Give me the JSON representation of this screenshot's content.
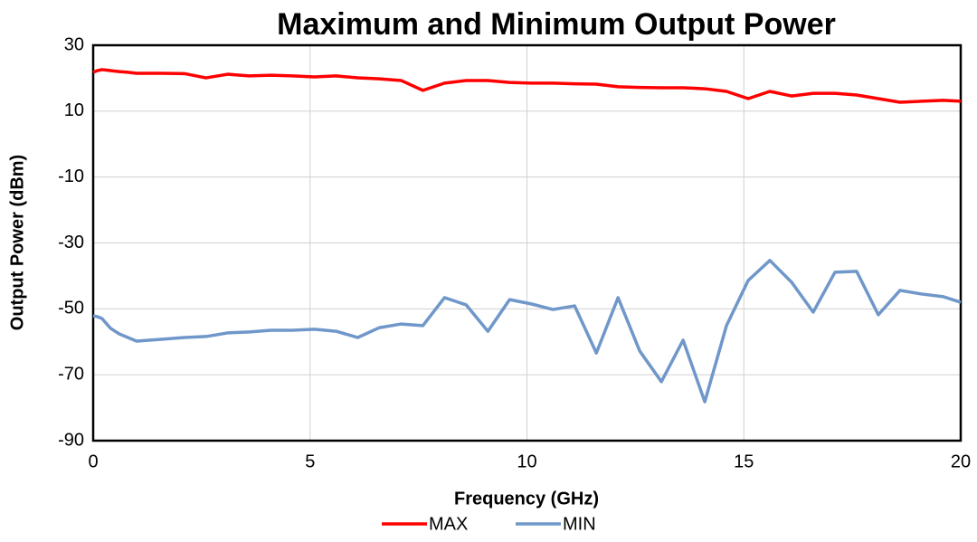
{
  "chart_data": {
    "type": "line",
    "title": "Maximum and Minimum Output Power",
    "x_label": "Frequency (GHz)",
    "y_label": "Output Power (dBm)",
    "x": [
      0,
      0.1,
      0.2,
      0.4,
      0.6,
      0.8,
      1.0,
      1.6,
      2.1,
      2.6,
      3.1,
      3.6,
      4.1,
      4.6,
      5.1,
      5.6,
      6.1,
      6.6,
      7.1,
      7.6,
      8.1,
      8.6,
      9.1,
      9.6,
      10.1,
      10.6,
      11.1,
      11.6,
      12.1,
      12.6,
      13.1,
      13.6,
      14.1,
      14.6,
      15.1,
      15.6,
      16.1,
      16.6,
      17.1,
      17.6,
      18.1,
      18.6,
      19.1,
      19.6,
      20.0
    ],
    "series": [
      {
        "name": "MAX",
        "color": "#ff0000",
        "values": [
          21.8,
          22.3,
          22.6,
          22.3,
          22.0,
          21.8,
          21.5,
          21.5,
          21.4,
          20.1,
          21.2,
          20.7,
          20.9,
          20.7,
          20.4,
          20.7,
          20.1,
          19.8,
          19.3,
          16.3,
          18.5,
          19.3,
          19.3,
          18.7,
          18.5,
          18.5,
          18.3,
          18.2,
          17.4,
          17.2,
          17.1,
          17.1,
          16.8,
          16.0,
          13.8,
          16.0,
          14.6,
          15.4,
          15.4,
          14.9,
          13.8,
          12.7,
          13.0,
          13.3,
          13.0
        ]
      },
      {
        "name": "MIN",
        "color": "#6f97c9",
        "values": [
          -52.1,
          -52.4,
          -52.9,
          -55.9,
          -57.6,
          -58.7,
          -59.8,
          -59.2,
          -58.7,
          -58.4,
          -57.3,
          -57.0,
          -56.5,
          -56.5,
          -56.2,
          -56.8,
          -58.7,
          -55.7,
          -54.6,
          -55.1,
          -46.6,
          -48.8,
          -56.8,
          -47.2,
          -48.5,
          -50.2,
          -49.1,
          -63.4,
          -46.6,
          -62.8,
          -72.1,
          -59.5,
          -78.2,
          -55.1,
          -41.4,
          -35.3,
          -41.9,
          -51.0,
          -38.9,
          -38.6,
          -51.8,
          -44.4,
          -45.5,
          -46.3,
          -48.0
        ]
      }
    ],
    "xlim": [
      0,
      20
    ],
    "xticks": [
      0,
      5,
      10,
      15,
      20
    ],
    "ylim": [
      -90,
      30
    ],
    "yticks": [
      -90,
      -70,
      -50,
      -30,
      -10,
      10,
      30
    ],
    "grid": true,
    "legend": "bottom"
  }
}
